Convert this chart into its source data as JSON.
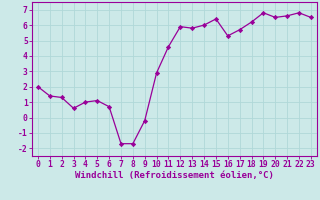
{
  "x": [
    0,
    1,
    2,
    3,
    4,
    5,
    6,
    7,
    8,
    9,
    10,
    11,
    12,
    13,
    14,
    15,
    16,
    17,
    18,
    19,
    20,
    21,
    22,
    23
  ],
  "y": [
    2.0,
    1.4,
    1.3,
    0.6,
    1.0,
    1.1,
    0.7,
    -1.7,
    -1.7,
    -0.2,
    2.9,
    4.6,
    5.9,
    5.8,
    6.0,
    6.4,
    5.3,
    5.7,
    6.2,
    6.8,
    6.5,
    6.6,
    6.8,
    6.5
  ],
  "line_color": "#990099",
  "marker": "D",
  "marker_size": 2.2,
  "background_color": "#cce9e8",
  "grid_color": "#b0d8d8",
  "xlabel": "Windchill (Refroidissement éolien,°C)",
  "ylabel": "",
  "xlim": [
    -0.5,
    23.5
  ],
  "ylim": [
    -2.5,
    7.5
  ],
  "yticks": [
    -2,
    -1,
    0,
    1,
    2,
    3,
    4,
    5,
    6,
    7
  ],
  "xticks": [
    0,
    1,
    2,
    3,
    4,
    5,
    6,
    7,
    8,
    9,
    10,
    11,
    12,
    13,
    14,
    15,
    16,
    17,
    18,
    19,
    20,
    21,
    22,
    23
  ],
  "tick_label_fontsize": 5.8,
  "xlabel_fontsize": 6.5,
  "tick_color": "#990099",
  "axis_color": "#990099",
  "linewidth": 0.9
}
